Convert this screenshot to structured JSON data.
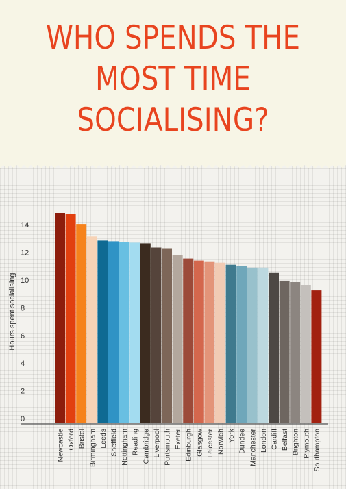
{
  "title_lines": [
    "WHO SPENDS THE",
    "MOST TIME",
    "SOCIALISING?"
  ],
  "chart_data": {
    "type": "bar",
    "title": "WHO SPENDS THE MOST TIME SOCIALISING?",
    "ylabel": "Hours spent socialising",
    "xlabel": "",
    "ylim": [
      0,
      15
    ],
    "yticks": [
      0,
      2,
      4,
      6,
      8,
      10,
      12,
      14
    ],
    "grid": false,
    "categories": [
      "Newcastle",
      "Oxford",
      "Bristol",
      "Birmingham",
      "Leeds",
      "Sheffield",
      "Nottingham",
      "Reading",
      "Cambridge",
      "Liverpool",
      "Portsmouth",
      "Exeter",
      "Edinburgh",
      "Glasgow",
      "Leicester",
      "Norwich",
      "York",
      "Dundee",
      "Manchester",
      "London",
      "Cardiff",
      "Belfast",
      "Brighton",
      "Plymouth",
      "Southampton"
    ],
    "values": [
      15.2,
      15.1,
      14.4,
      13.5,
      13.2,
      13.15,
      13.1,
      13.05,
      13.0,
      12.7,
      12.65,
      12.15,
      11.9,
      11.75,
      11.7,
      11.6,
      11.45,
      11.35,
      11.25,
      11.25,
      10.9,
      10.3,
      10.2,
      10.0,
      9.6
    ],
    "colors": [
      "#8d1d0c",
      "#e2400f",
      "#f6821b",
      "#f7d3b6",
      "#0f6a93",
      "#2f93c5",
      "#68bfe2",
      "#a3dcf0",
      "#3b2b1f",
      "#55443b",
      "#7d6658",
      "#b3a79d",
      "#9c4a39",
      "#d4674d",
      "#e39479",
      "#f1cbb4",
      "#3f7a8e",
      "#6fa7ba",
      "#98c1cc",
      "#bcd8df",
      "#4d4844",
      "#6e6660",
      "#8c8580",
      "#c4c0bc",
      "#a22110"
    ]
  }
}
